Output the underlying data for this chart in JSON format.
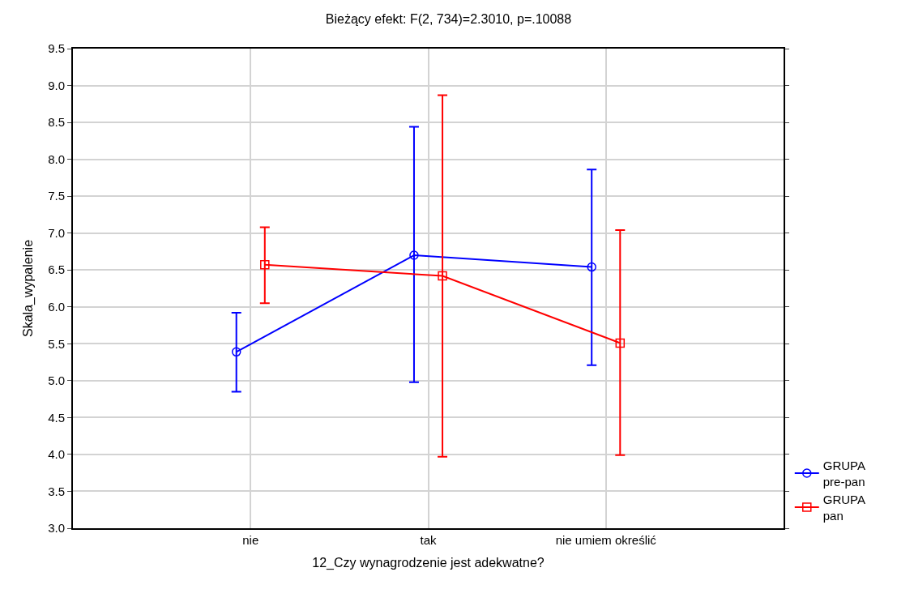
{
  "chart_data": {
    "type": "line",
    "title": "Bieżący efekt: F(2, 734)=2.3010, p=.10088",
    "xlabel": "12_Czy wynagrodzenie jest adekwatne?",
    "ylabel": "Skala_wypalenie",
    "categories": [
      "nie",
      "tak",
      "nie umiem określić"
    ],
    "series": [
      {
        "name": "GRUPA pre-pan",
        "color": "#0000ff",
        "marker": "circle",
        "values": [
          5.39,
          6.7,
          6.54
        ],
        "errors": [
          [
            4.85,
            5.92
          ],
          [
            4.98,
            8.44
          ],
          [
            5.21,
            7.86
          ]
        ]
      },
      {
        "name": "GRUPA pan",
        "color": "#ff0000",
        "marker": "square",
        "values": [
          6.57,
          6.42,
          5.51
        ],
        "errors": [
          [
            6.05,
            7.08
          ],
          [
            3.97,
            8.87
          ],
          [
            3.99,
            7.04
          ]
        ]
      }
    ],
    "ylim": [
      3.0,
      9.5
    ],
    "yticks": [
      {
        "value": 3.0,
        "label": "3.0"
      },
      {
        "value": 3.5,
        "label": "3.5"
      },
      {
        "value": 4.0,
        "label": "4.0"
      },
      {
        "value": 4.5,
        "label": "4.5"
      },
      {
        "value": 5.0,
        "label": "5.0"
      },
      {
        "value": 5.5,
        "label": "5.5"
      },
      {
        "value": 6.0,
        "label": "6.0"
      },
      {
        "value": 6.5,
        "label": "6.5"
      },
      {
        "value": 7.0,
        "label": "7.0"
      },
      {
        "value": 7.5,
        "label": "7.5"
      },
      {
        "value": 8.0,
        "label": "8.0"
      },
      {
        "value": 8.5,
        "label": "8.5"
      },
      {
        "value": 9.0,
        "label": "9.0"
      },
      {
        "value": 9.5,
        "label": "9.5"
      }
    ],
    "grid": true,
    "legend": "bottom right",
    "line_style": "solid"
  }
}
